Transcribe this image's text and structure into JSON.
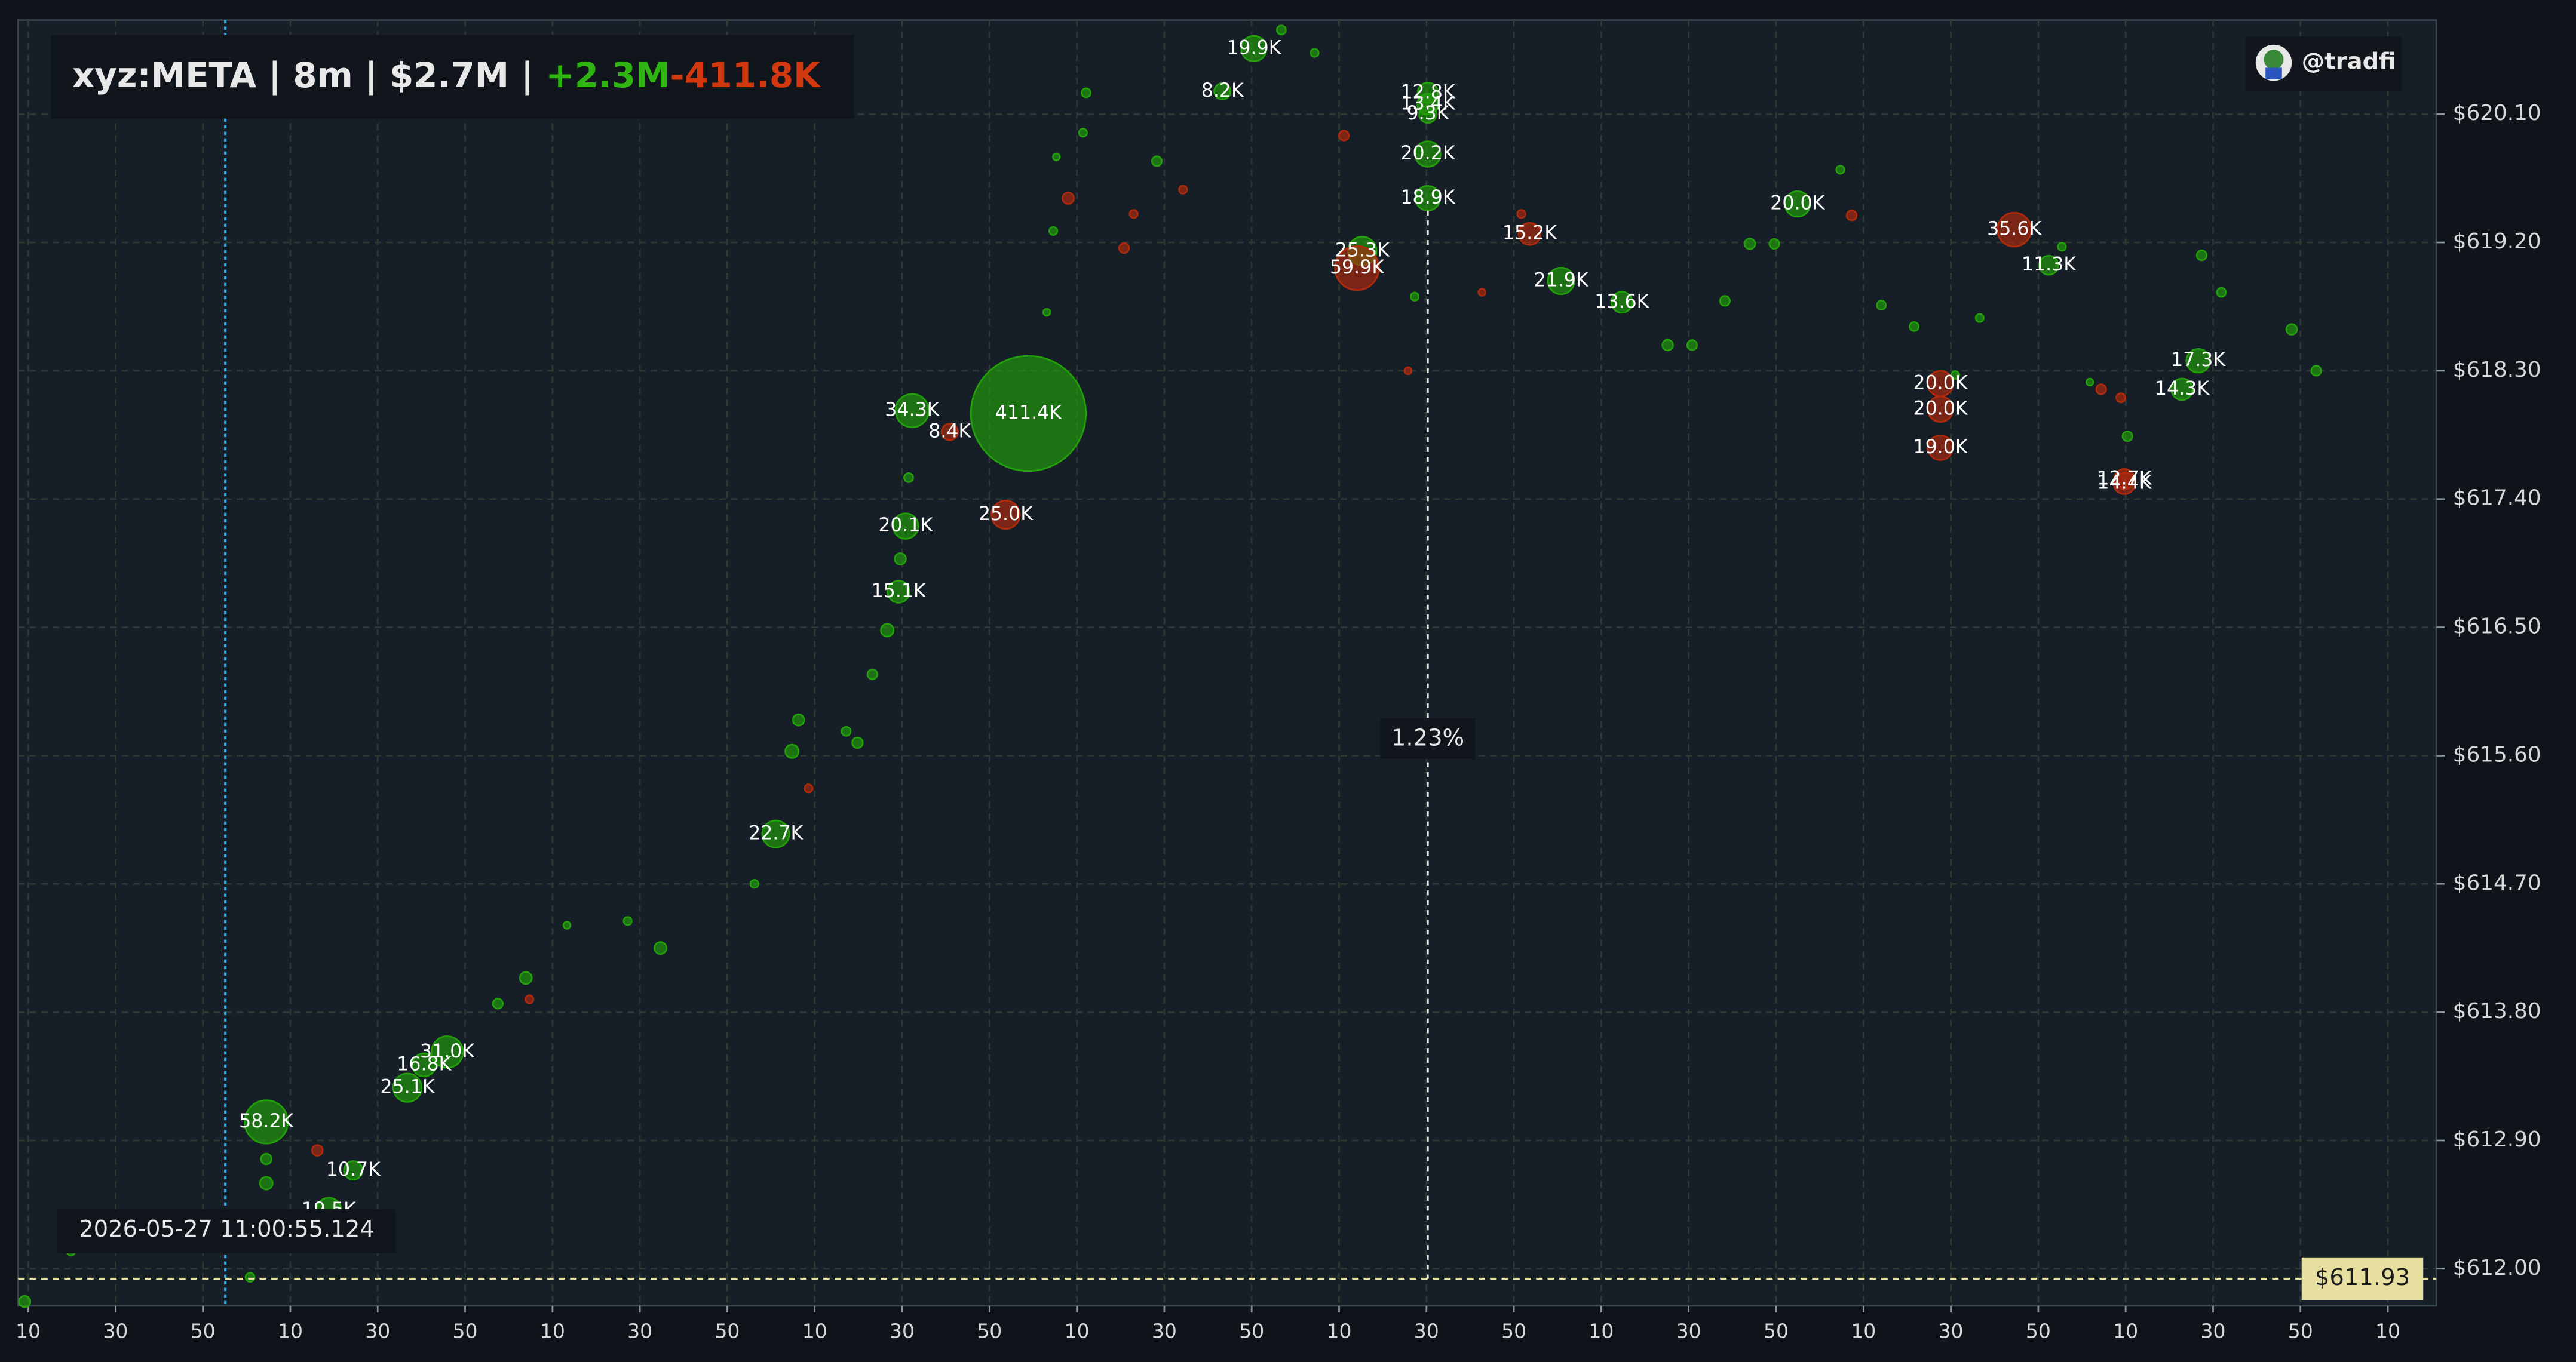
{
  "header": {
    "title": "xyz:META | 8m | $2.7M | ",
    "buy_total": "+2.3M",
    "sell_total": "-411.8K",
    "handle": "@tradfi"
  },
  "chart_data": {
    "type": "scatter",
    "xlim": [
      7.7,
      561.1
    ],
    "xticks": [
      {
        "value": 10,
        "label": "10"
      },
      {
        "value": 30,
        "label": "30"
      },
      {
        "value": 50,
        "label": "50"
      },
      {
        "value": 70,
        "label": "10"
      },
      {
        "value": 90,
        "label": "30"
      },
      {
        "value": 110,
        "label": "50"
      },
      {
        "value": 130,
        "label": "10"
      },
      {
        "value": 150,
        "label": "30"
      },
      {
        "value": 170,
        "label": "50"
      },
      {
        "value": 190,
        "label": "10"
      },
      {
        "value": 210,
        "label": "30"
      },
      {
        "value": 230,
        "label": "50"
      },
      {
        "value": 250,
        "label": "10"
      },
      {
        "value": 270,
        "label": "30"
      },
      {
        "value": 290,
        "label": "50"
      },
      {
        "value": 310,
        "label": "10"
      },
      {
        "value": 330,
        "label": "30"
      },
      {
        "value": 350,
        "label": "50"
      },
      {
        "value": 370,
        "label": "10"
      },
      {
        "value": 390,
        "label": "30"
      },
      {
        "value": 410,
        "label": "50"
      },
      {
        "value": 430,
        "label": "10"
      },
      {
        "value": 450,
        "label": "30"
      },
      {
        "value": 470,
        "label": "50"
      },
      {
        "value": 490,
        "label": "10"
      },
      {
        "value": 510,
        "label": "30"
      },
      {
        "value": 530,
        "label": "50"
      },
      {
        "value": 550,
        "label": "10"
      }
    ],
    "ylim": [
      611.74,
      620.76
    ],
    "yticks": [
      {
        "value": 612.0,
        "label": "$612.00"
      },
      {
        "value": 612.9,
        "label": "$612.90"
      },
      {
        "value": 613.8,
        "label": "$613.80"
      },
      {
        "value": 614.7,
        "label": "$614.70"
      },
      {
        "value": 615.6,
        "label": "$615.60"
      },
      {
        "value": 616.5,
        "label": "$616.50"
      },
      {
        "value": 617.4,
        "label": "$617.40"
      },
      {
        "value": 618.3,
        "label": "$618.30"
      },
      {
        "value": 619.2,
        "label": "$619.20"
      },
      {
        "value": 620.1,
        "label": "$620.10"
      }
    ],
    "grid": true,
    "cursor": {
      "x": 55.124,
      "label": "2026-05-27 11:00:55.124"
    },
    "crosshair": {
      "x": 330.3,
      "label": "1.23%"
    },
    "last_price": {
      "value": 611.93,
      "label": "$611.93"
    },
    "series": [
      {
        "color": "#22a00a",
        "x": [
          64.5,
          96.8,
          100.6,
          105.9,
          84.4,
          78.8,
          181.1,
          209.2,
          210.8,
          212.3,
          238.9,
          290.5,
          283.3,
          330.3,
          330.3,
          330.3,
          330.3,
          330.3,
          315.3,
          360.8,
          374.7,
          414.9,
          506.6,
          502.9,
          472.4,
          9.2,
          19.8,
          60.8,
          64.5,
          64.5,
          117.5,
          123.9,
          133.3,
          147.2,
          154.7,
          176.2,
          184.8,
          186.3,
          197.2,
          199.8,
          203.2,
          206.6,
          209.6,
          211.5,
          243.1,
          244.6,
          245.3,
          251.4,
          252.1,
          268.3,
          296.8,
          304.4,
          327.3,
          385.2,
          390.8,
          398.3,
          404.0,
          409.6,
          424.7,
          434.1,
          441.6,
          451.0,
          456.6,
          475.4,
          481.8,
          490.4,
          507.4,
          511.9,
          528.0,
          533.6
        ],
        "values": [
          613.03,
          613.27,
          613.43,
          613.52,
          612.69,
          612.41,
          615.05,
          616.75,
          617.21,
          618.02,
          618.0,
          620.56,
          620.26,
          620.25,
          620.17,
          620.1,
          619.82,
          619.51,
          619.14,
          618.93,
          618.78,
          619.47,
          618.37,
          618.17,
          619.04,
          611.77,
          612.12,
          611.94,
          612.6,
          612.77,
          613.86,
          614.04,
          614.41,
          614.44,
          614.25,
          614.7,
          615.63,
          615.85,
          615.77,
          615.69,
          616.17,
          616.48,
          616.98,
          617.55,
          618.71,
          619.28,
          619.8,
          619.97,
          620.25,
          619.77,
          620.69,
          620.53,
          618.82,
          618.48,
          618.48,
          618.79,
          619.19,
          619.19,
          619.71,
          618.76,
          618.61,
          618.27,
          618.67,
          619.17,
          618.22,
          617.84,
          619.11,
          618.85,
          618.59,
          618.3
        ],
        "sizes": [
          58200,
          25100,
          16800,
          31000,
          10700,
          19500,
          22700,
          15100,
          20100,
          34300,
          411400,
          19900,
          8200,
          12800,
          13400,
          9300,
          20200,
          18900,
          25300,
          21900,
          13600,
          20000,
          17300,
          14300,
          11300,
          4000,
          2000,
          2500,
          5000,
          3500,
          3000,
          4500,
          1500,
          2000,
          4500,
          2000,
          5500,
          4000,
          2500,
          3500,
          3000,
          5000,
          4000,
          2500,
          1500,
          2000,
          1500,
          2000,
          2500,
          3000,
          2500,
          2000,
          2000,
          3500,
          3000,
          3000,
          3500,
          3000,
          2000,
          2500,
          2500,
          2000,
          2000,
          2000,
          1500,
          3000,
          3000,
          2500,
          3500,
          3000
        ],
        "size_labels": [
          "58.2K",
          "25.1K",
          "16.8K",
          "31.0K",
          "10.7K",
          "19.5K",
          "22.7K",
          "15.1K",
          "20.1K",
          "34.3K",
          "411.4K",
          "19.9K",
          "8.2K",
          "12.8K",
          "13.4K",
          "9.3K",
          "20.2K",
          "18.9K",
          "25.3K",
          "21.9K",
          "13.6K",
          "20.0K",
          "17.3K",
          "14.3K",
          "11.3K",
          null,
          null,
          null,
          null,
          null,
          null,
          null,
          null,
          null,
          null,
          null,
          null,
          null,
          null,
          null,
          null,
          null,
          null,
          null,
          null,
          null,
          null,
          null,
          null,
          null,
          null,
          null,
          null,
          null,
          null,
          null,
          null,
          null,
          null,
          null,
          null,
          null,
          null,
          null,
          null,
          null,
          null,
          null,
          null,
          null
        ]
      },
      {
        "color": "#b02a0c",
        "x": [
          220.9,
          233.7,
          314.1,
          353.6,
          447.6,
          447.6,
          447.6,
          464.5,
          489.7,
          489.7,
          76.2,
          124.7,
          188.6,
          248.0,
          260.8,
          263.0,
          274.3,
          311.1,
          325.8,
          351.7,
          342.7,
          427.3,
          484.4,
          488.9
        ],
        "values": [
          617.87,
          617.29,
          619.02,
          619.26,
          618.21,
          618.03,
          617.76,
          619.29,
          617.54,
          617.51,
          612.83,
          613.89,
          615.37,
          619.51,
          619.16,
          619.4,
          619.57,
          619.95,
          618.3,
          619.4,
          618.85,
          619.39,
          618.17,
          618.11
        ],
        "sizes": [
          8400,
          25000,
          59900,
          15200,
          20000,
          20000,
          19000,
          35600,
          12700,
          14400,
          3500,
          2000,
          2000,
          4000,
          3000,
          2000,
          2000,
          3000,
          1500,
          2000,
          1500,
          3000,
          3000,
          2500
        ],
        "size_labels": [
          "8.4K",
          "25.0K",
          "59.9K",
          "15.2K",
          "20.0K",
          "20.0K",
          "19.0K",
          "35.6K",
          "12.7K",
          "14.4K",
          null,
          null,
          null,
          null,
          null,
          null,
          null,
          null,
          null,
          null,
          null,
          null,
          null,
          null
        ]
      }
    ]
  }
}
